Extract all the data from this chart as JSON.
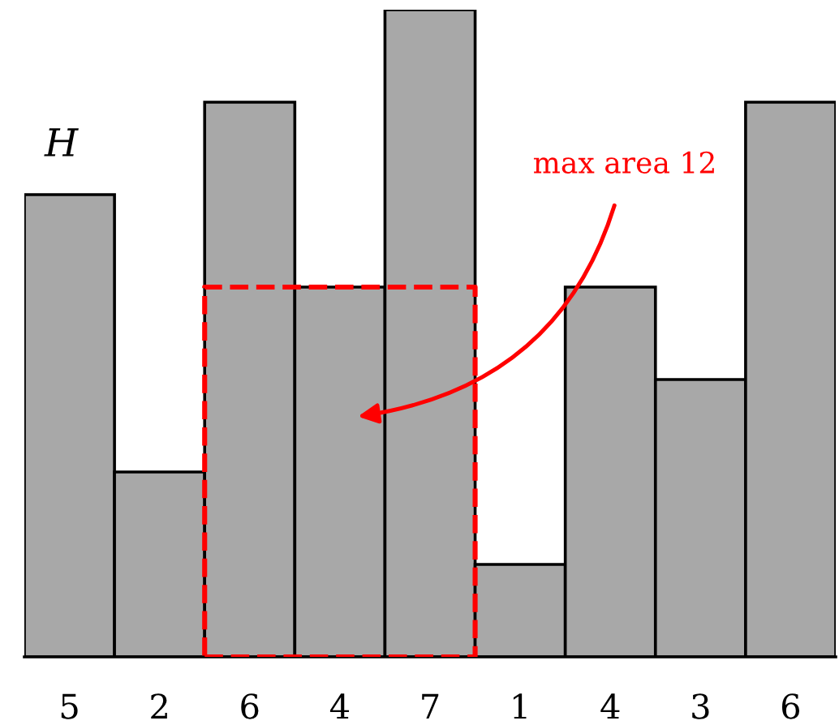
{
  "chart_data": {
    "type": "bar",
    "categories": [
      null,
      null,
      null,
      null,
      null,
      null,
      null,
      null,
      null
    ],
    "series": [
      {
        "color": "#a8a8a8",
        "values": [
          5,
          2,
          6,
          4,
          7,
          1,
          4,
          3,
          6
        ]
      }
    ],
    "data_labels": true,
    "annotations": [
      "H",
      "max area 12"
    ]
  }
}
